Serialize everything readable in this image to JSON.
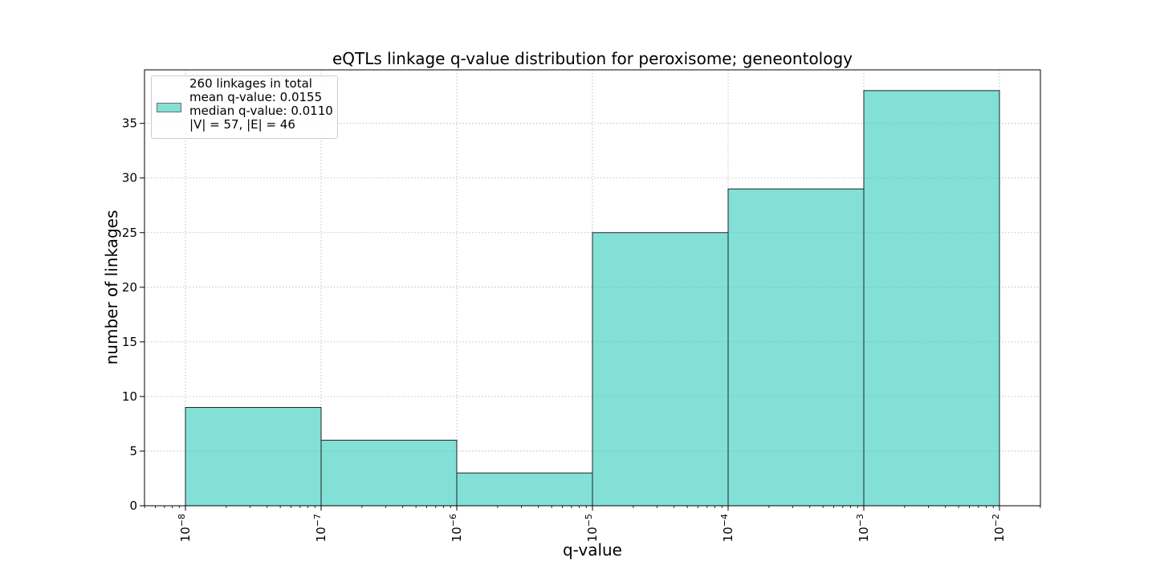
{
  "chart_data": {
    "type": "bar",
    "title": "eQTLs linkage q-value distribution for peroxisome; geneontology",
    "xlabel": "q-value",
    "ylabel": "number of linkages",
    "x_scale": "log",
    "xlim": [
      1e-08,
      0.01
    ],
    "ylim": [
      0,
      39.9
    ],
    "bins": [
      {
        "from": 1e-08,
        "to": 1e-07,
        "value": 9
      },
      {
        "from": 1e-07,
        "to": 1e-06,
        "value": 6
      },
      {
        "from": 1e-06,
        "to": 1e-05,
        "value": 3
      },
      {
        "from": 1e-05,
        "to": 0.0001,
        "value": 25
      },
      {
        "from": 0.0001,
        "to": 0.001,
        "value": 29
      },
      {
        "from": 0.001,
        "to": 0.01,
        "value": 38
      }
    ],
    "x_ticks": [
      {
        "value": 1e-08,
        "base": "10",
        "exp": "−8"
      },
      {
        "value": 1e-07,
        "base": "10",
        "exp": "−7"
      },
      {
        "value": 1e-06,
        "base": "10",
        "exp": "−6"
      },
      {
        "value": 1e-05,
        "base": "10",
        "exp": "−5"
      },
      {
        "value": 0.0001,
        "base": "10",
        "exp": "−4"
      },
      {
        "value": 0.001,
        "base": "10",
        "exp": "−3"
      },
      {
        "value": 0.01,
        "base": "10",
        "exp": "−2"
      }
    ],
    "y_ticks": [
      0,
      5,
      10,
      15,
      20,
      25,
      30,
      35
    ],
    "grid": true,
    "bar_color": "#40d0c0",
    "edge_color": "#222222",
    "legend": {
      "placement": "top-left",
      "lines": [
        "260 linkages in total",
        "mean q-value: 0.0155",
        "median q-value: 0.0110",
        "|V| = 57, |E| = 46"
      ]
    }
  }
}
